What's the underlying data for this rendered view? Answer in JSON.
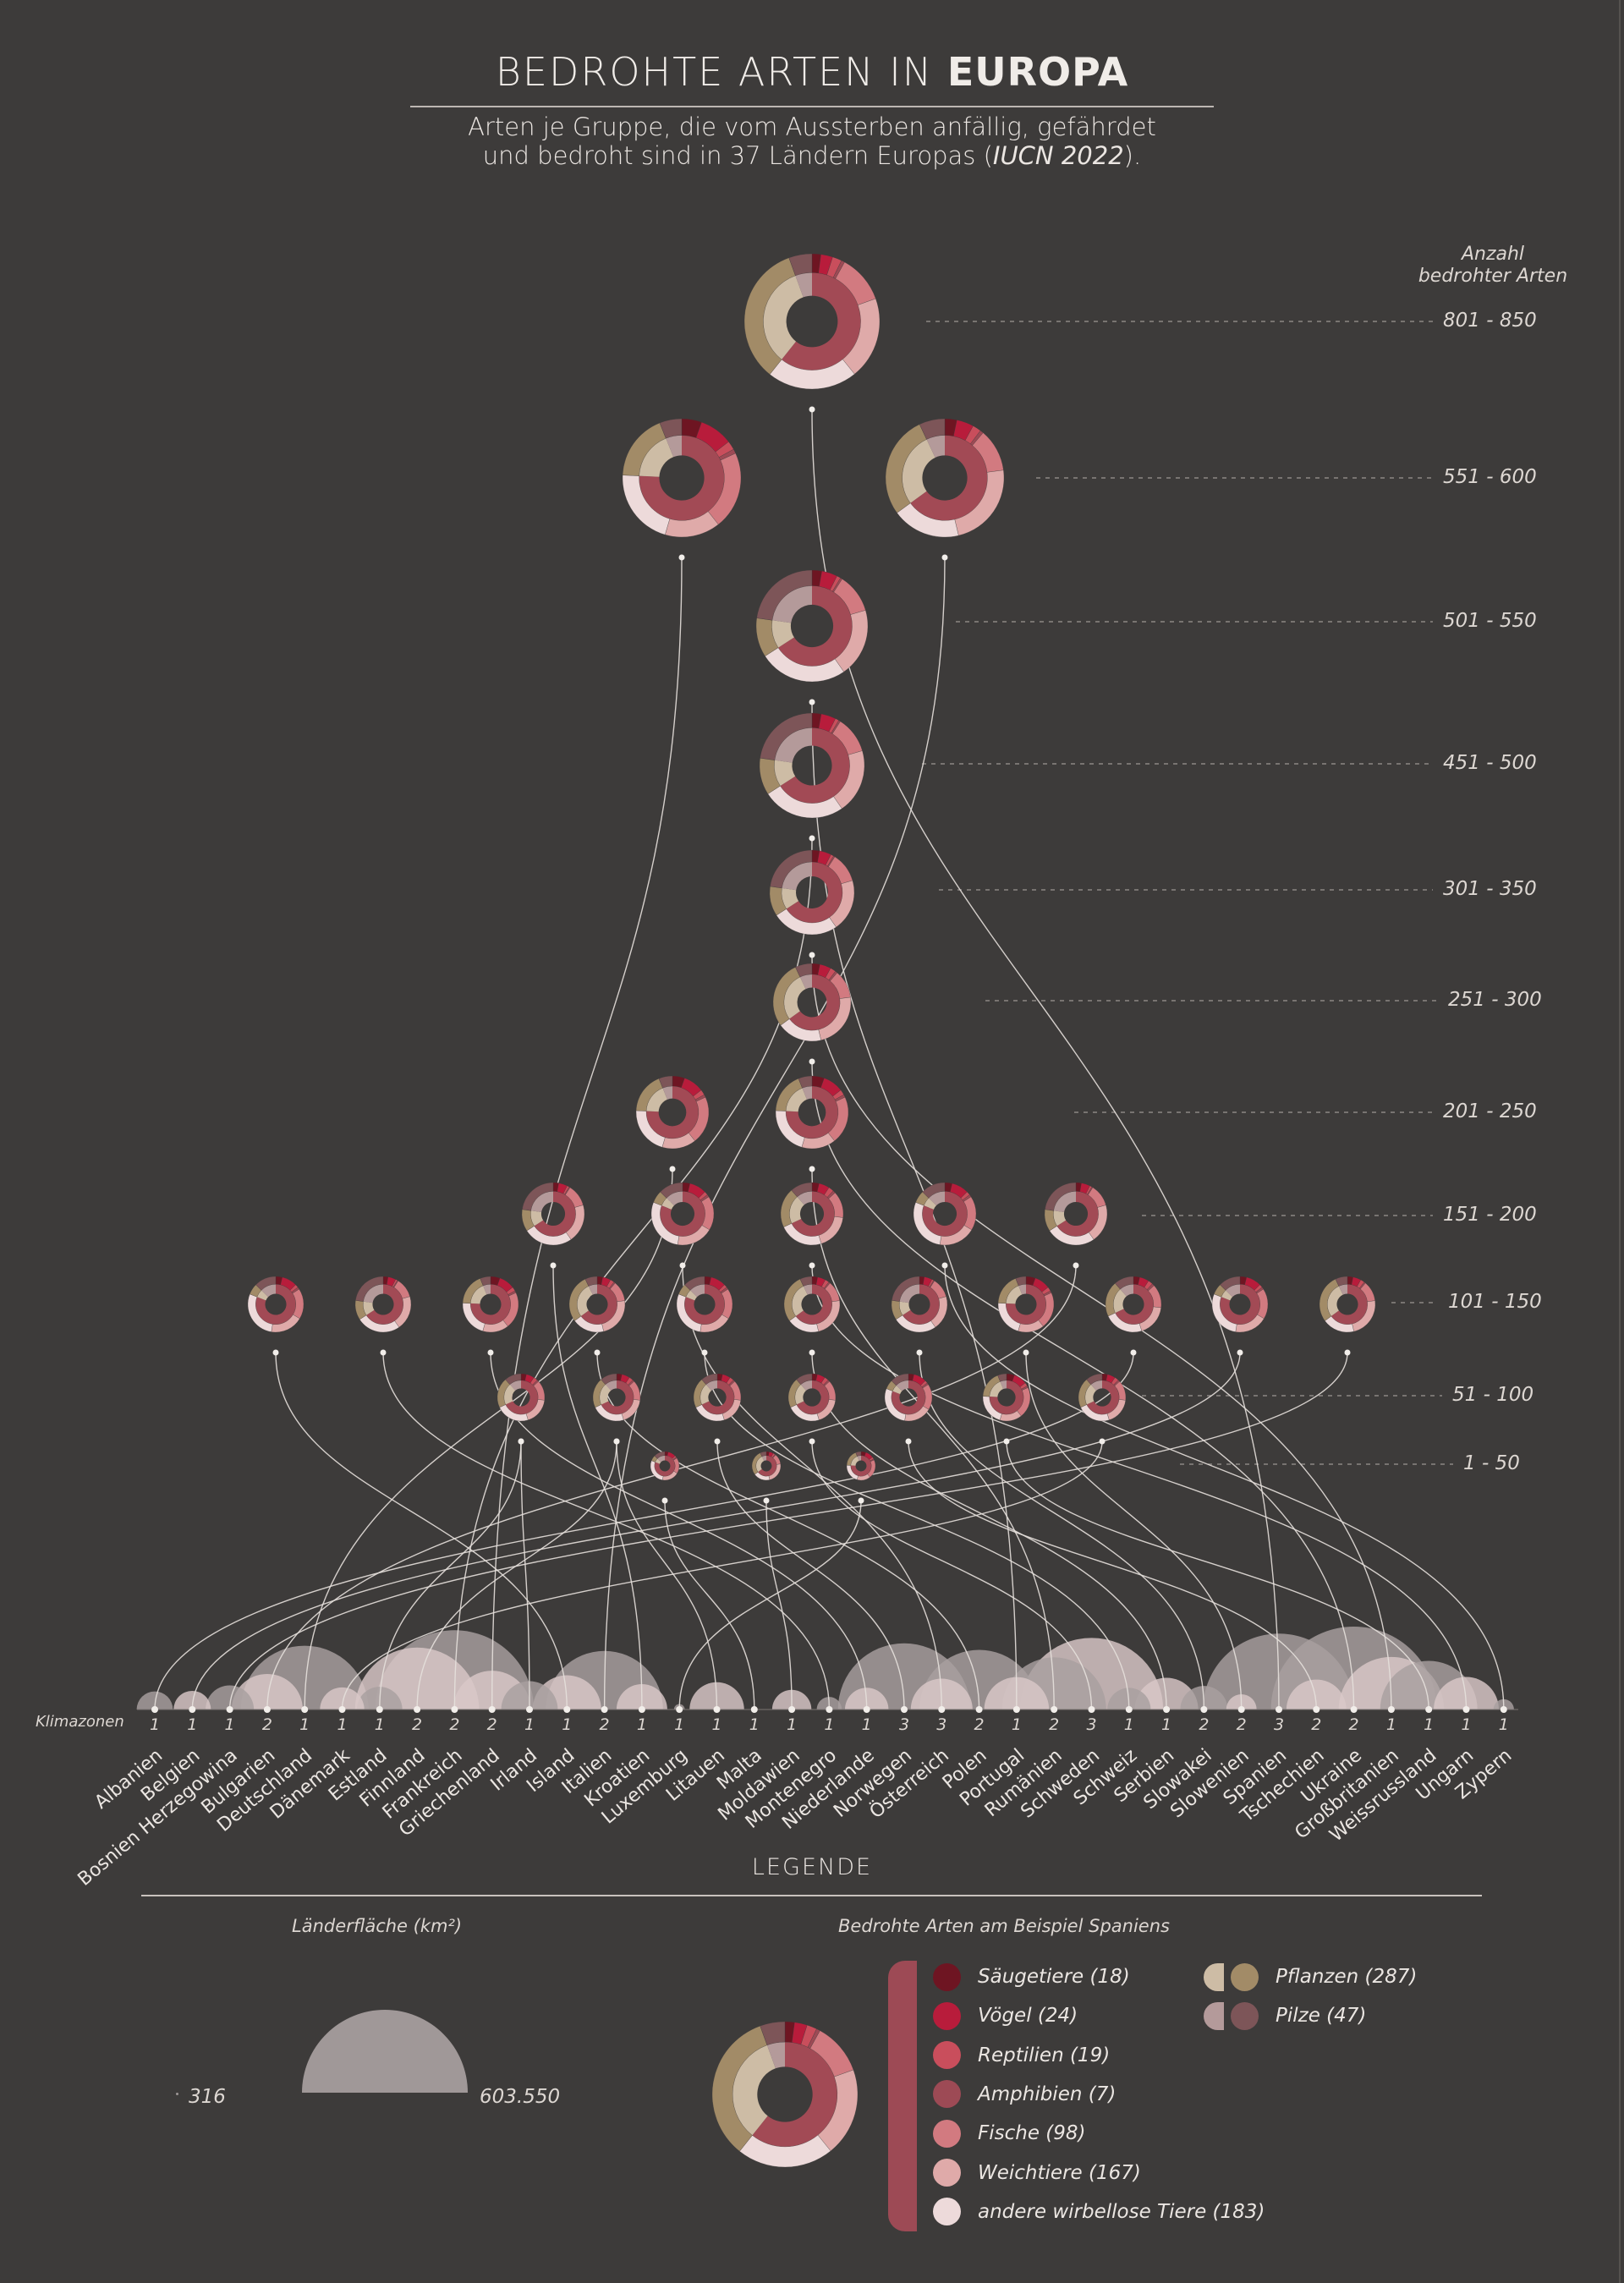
{
  "header": {
    "title_light": "BEDROHTE ARTEN IN",
    "title_bold": "EUROPA",
    "subtitle_line1": "Arten je Gruppe, die vom Aussterben anfällig, gefährdet",
    "subtitle_line2_a": "und bedroht sind in 37 Ländern Europas (",
    "subtitle_line2_source": "IUCN 2022",
    "subtitle_line2_b": ")."
  },
  "axis": {
    "heading_line1": "Anzahl",
    "heading_line2": "bedrohter Arten",
    "klimazonen_label": "Klimazonen"
  },
  "colors": {
    "background": "#3d3b3a",
    "saeugetiere": "#6e1522",
    "voegel": "#b81c3b",
    "reptilien": "#c94e5c",
    "amphibien": "#9d4a55",
    "fische": "#d27a80",
    "weichtiere": "#dfaaa9",
    "wirbellose": "#eddada",
    "tiere_inner": "#a24a55",
    "pflanzen_outer": "#a28b67",
    "pflanzen_inner": "#cdbca5",
    "pilze_outer": "#7d5558",
    "pilze_inner": "#b49a9a",
    "area_fill": "#a8a0a0",
    "area_fill_light": "#d9c8c8"
  },
  "legend": {
    "title": "LEGENDE",
    "area_title": "Länderfläche (km²)",
    "area_min": "316",
    "area_max": "603.550",
    "donut_title": "Bedrohte Arten am Beispiel Spaniens",
    "animals": [
      {
        "key": "saeugetiere",
        "label": "Säugetiere (18)"
      },
      {
        "key": "voegel",
        "label": "Vögel (24)"
      },
      {
        "key": "reptilien",
        "label": "Reptilien (19)"
      },
      {
        "key": "amphibien",
        "label": "Amphibien (7)"
      },
      {
        "key": "fische",
        "label": "Fische (98)"
      },
      {
        "key": "weichtiere",
        "label": "Weichtiere (167)"
      },
      {
        "key": "wirbellose",
        "label": "andere wirbellose Tiere (183)"
      }
    ],
    "others": [
      {
        "key": "pflanzen",
        "label": "Pflanzen (287)"
      },
      {
        "key": "pilze",
        "label": "Pilze (47)"
      }
    ]
  },
  "chart_data": {
    "type": "donut-hierarchy",
    "title": "BEDROHTE ARTEN IN EUROPA",
    "groups": [
      "Säugetiere",
      "Vögel",
      "Reptilien",
      "Amphibien",
      "Fische",
      "Weichtiere",
      "andere wirbellose Tiere",
      "Pflanzen",
      "Pilze"
    ],
    "ranges": [
      "801 - 850",
      "551 - 600",
      "501 - 550",
      "451 - 500",
      "301 - 350",
      "251 - 300",
      "201 - 250",
      "151 - 200",
      "101 - 150",
      "51 - 100",
      "1 - 50"
    ],
    "countries": [
      {
        "name": "Albanien",
        "zone": "1",
        "area": 28748,
        "range": 8
      },
      {
        "name": "Belgien",
        "zone": "1",
        "area": 30528,
        "range": 8
      },
      {
        "name": "Bosnien Herzegowina",
        "zone": "1",
        "area": 51197,
        "range": 8
      },
      {
        "name": "Bulgarien",
        "zone": "2",
        "area": 110994,
        "range": 7
      },
      {
        "name": "Deutschland",
        "zone": "1",
        "area": 357588,
        "range": 6
      },
      {
        "name": "Dänemark",
        "zone": "1",
        "area": 43094,
        "range": 9
      },
      {
        "name": "Estland",
        "zone": "1",
        "area": 45228,
        "range": 9
      },
      {
        "name": "Finnland",
        "zone": "2",
        "area": 338145,
        "range": 9
      },
      {
        "name": "Frankreich",
        "zone": "2",
        "area": 551695,
        "range": 3
      },
      {
        "name": "Griechenland",
        "zone": "2",
        "area": 131957,
        "range": 1
      },
      {
        "name": "Irland",
        "zone": "1",
        "area": 70273,
        "range": 9
      },
      {
        "name": "Island",
        "zone": "1",
        "area": 103000,
        "range": 8
      },
      {
        "name": "Italien",
        "zone": "2",
        "area": 301340,
        "range": 1
      },
      {
        "name": "Kroatien",
        "zone": "1",
        "area": 56594,
        "range": 7
      },
      {
        "name": "Luxemburg",
        "zone": "1",
        "area": 2586,
        "range": 10
      },
      {
        "name": "Litauen",
        "zone": "1",
        "area": 65300,
        "range": 9
      },
      {
        "name": "Malta",
        "zone": "1",
        "area": 316,
        "range": 10
      },
      {
        "name": "Moldawien",
        "zone": "1",
        "area": 33846,
        "range": 10
      },
      {
        "name": "Montenegro",
        "zone": "1",
        "area": 13812,
        "range": 8
      },
      {
        "name": "Niederlande",
        "zone": "1",
        "area": 41543,
        "range": 8
      },
      {
        "name": "Norwegen",
        "zone": "3",
        "area": 385207,
        "range": 9
      },
      {
        "name": "Österreich",
        "zone": "3",
        "area": 83879,
        "range": 7
      },
      {
        "name": "Polen",
        "zone": "2",
        "area": 312696,
        "range": 8
      },
      {
        "name": "Portugal",
        "zone": "1",
        "area": 92212,
        "range": 2
      },
      {
        "name": "Rumänien",
        "zone": "2",
        "area": 238397,
        "range": 6
      },
      {
        "name": "Schweden",
        "zone": "3",
        "area": 450295,
        "range": 9
      },
      {
        "name": "Schweiz",
        "zone": "1",
        "area": 41285,
        "range": 8
      },
      {
        "name": "Serbien",
        "zone": "1",
        "area": 88361,
        "range": 8
      },
      {
        "name": "Slowakei",
        "zone": "2",
        "area": 49035,
        "range": 8
      },
      {
        "name": "Slowenien",
        "zone": "2",
        "area": 20273,
        "range": 8
      },
      {
        "name": "Spanien",
        "zone": "3",
        "area": 505990,
        "range": 0
      },
      {
        "name": "Tschechien",
        "zone": "2",
        "area": 78871,
        "range": 9
      },
      {
        "name": "Ukraine",
        "zone": "2",
        "area": 603550,
        "range": 5
      },
      {
        "name": "Großbritanien",
        "zone": "1",
        "area": 243610,
        "range": 4
      },
      {
        "name": "Weissrussland",
        "zone": "1",
        "area": 207600,
        "range": 9
      },
      {
        "name": "Ungarn",
        "zone": "1",
        "area": 93030,
        "range": 7
      },
      {
        "name": "Zypern",
        "zone": "1",
        "area": 9251,
        "range": 7
      }
    ],
    "example_spanien": {
      "Säugetiere": 18,
      "Vögel": 24,
      "Reptilien": 19,
      "Amphibien": 7,
      "Fische": 98,
      "Weichtiere": 167,
      "andere wirbellose Tiere": 183,
      "Pflanzen": 287,
      "Pilze": 47
    }
  }
}
